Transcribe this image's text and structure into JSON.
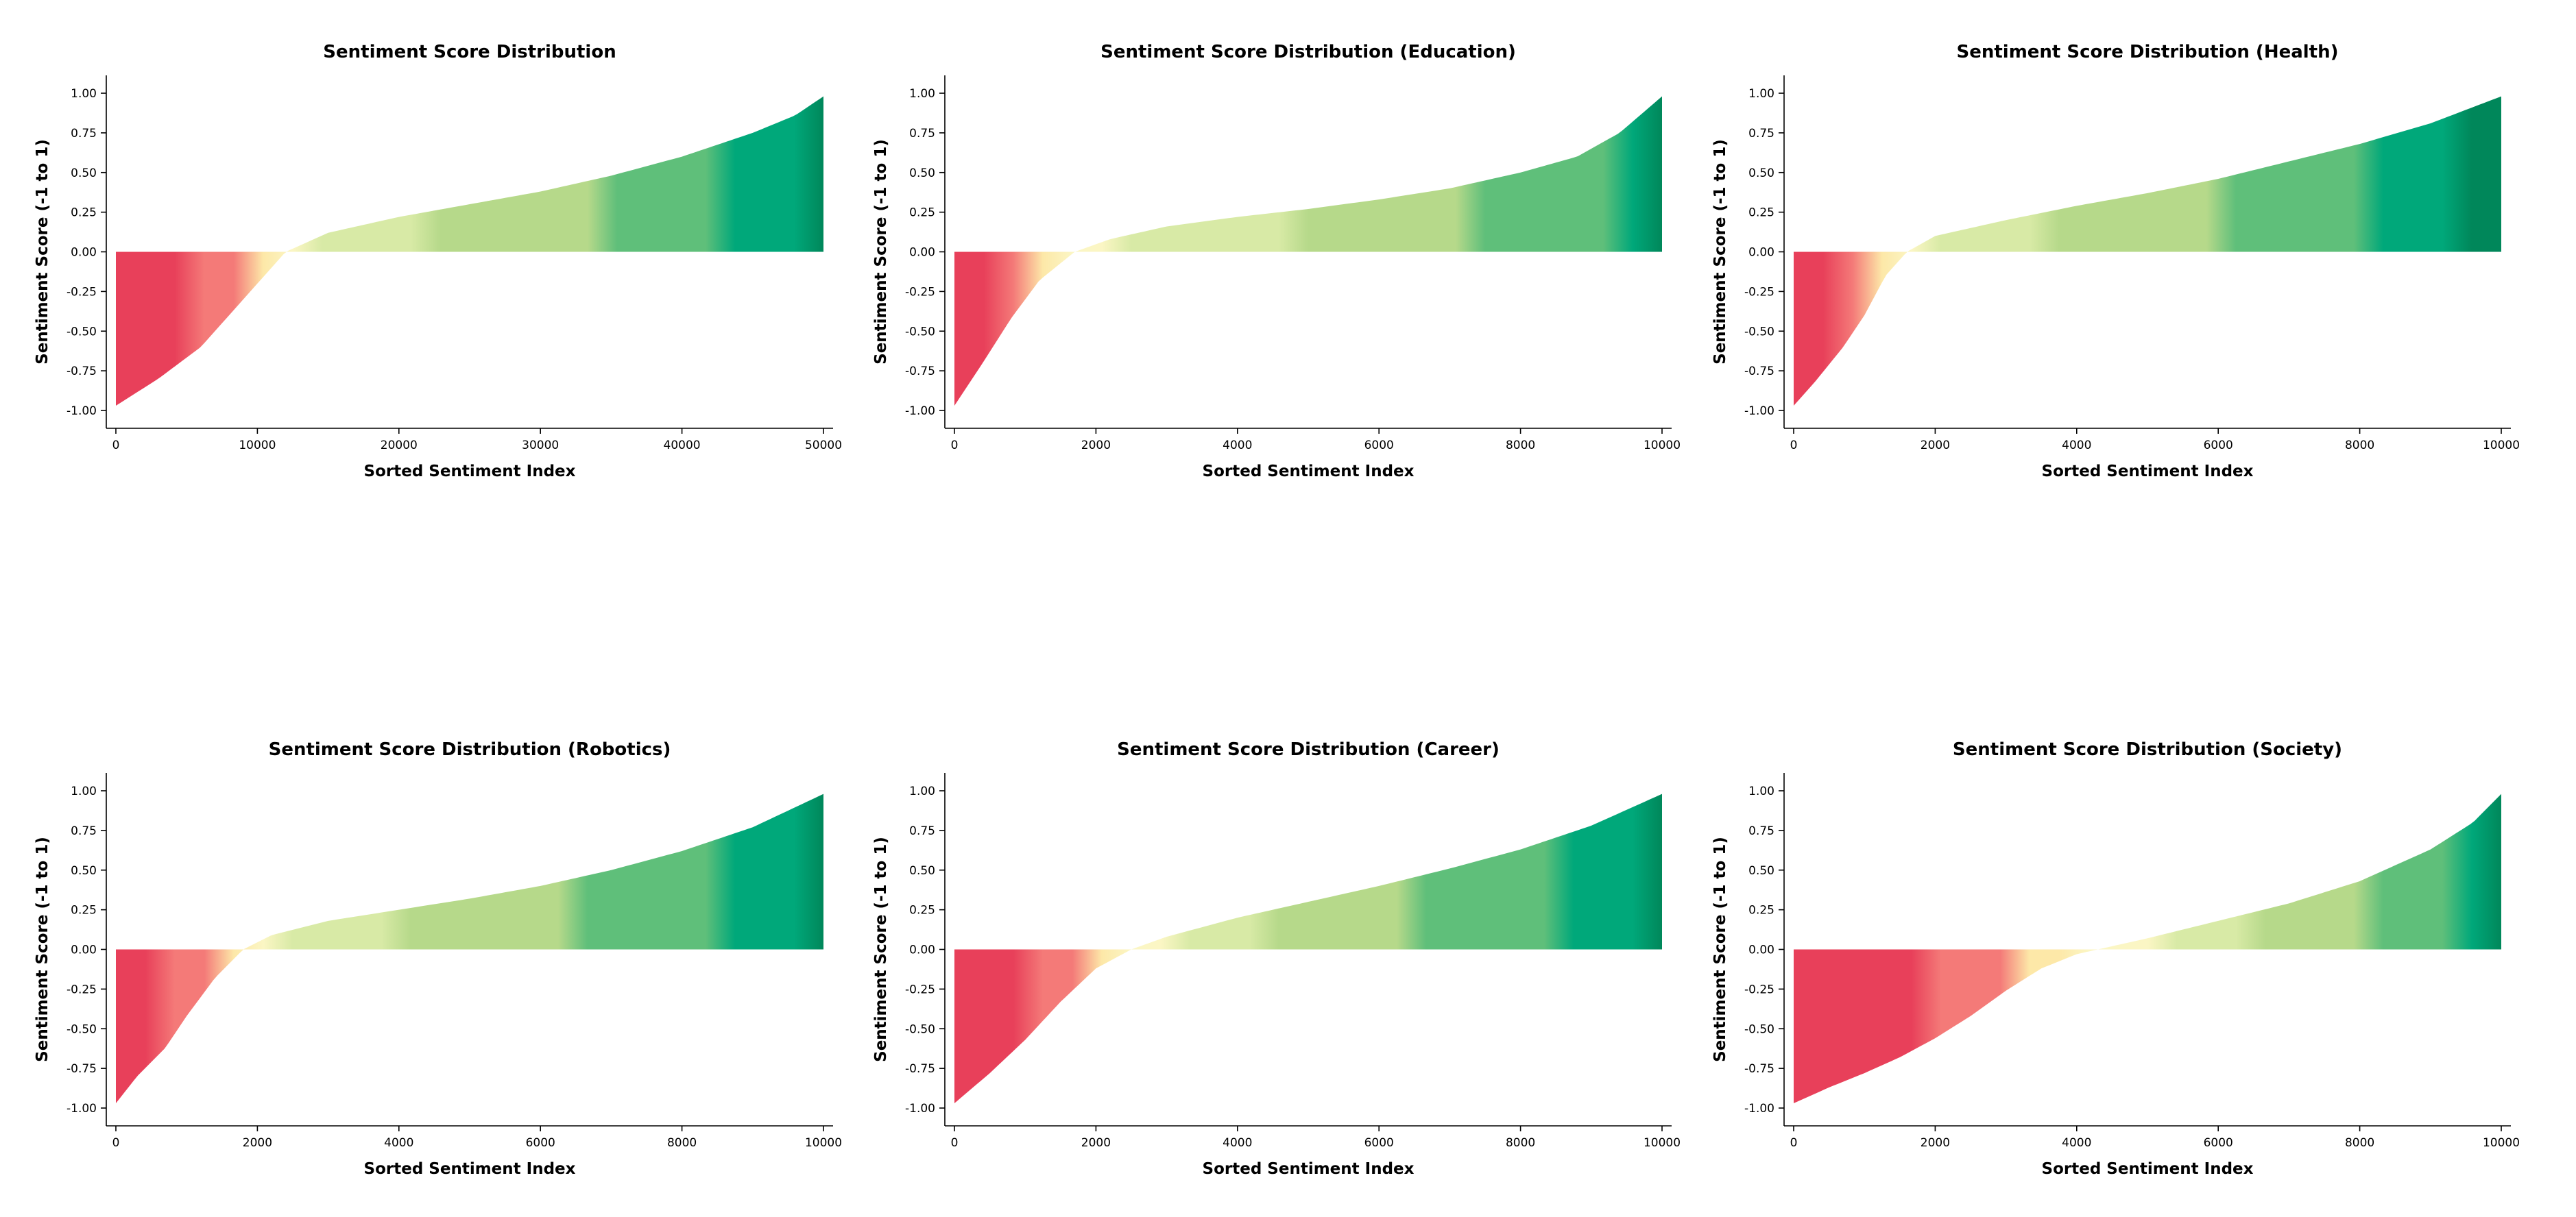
{
  "chart_data": [
    {
      "type": "area",
      "title": "Sentiment Score Distribution",
      "xlabel": "Sorted Sentiment Index",
      "ylabel": "Sentiment Score (-1 to 1)",
      "xlim": [
        0,
        50000
      ],
      "ylim": [
        -1.0,
        1.0
      ],
      "xticks": [
        0,
        10000,
        20000,
        30000,
        40000,
        50000
      ],
      "yticks": [
        "1.00",
        "0.75",
        "0.50",
        "0.25",
        "0.00",
        "-0.25",
        "-0.50",
        "-0.75",
        "-1.00"
      ],
      "grid": false,
      "series": [
        {
          "x": [
            0,
            3000,
            6000,
            9000,
            12000,
            15000,
            20000,
            25000,
            30000,
            35000,
            40000,
            45000,
            48000,
            50000
          ],
          "values": [
            -0.97,
            -0.8,
            -0.6,
            -0.3,
            0.0,
            0.12,
            0.22,
            0.3,
            0.38,
            0.48,
            0.6,
            0.75,
            0.86,
            0.98
          ]
        }
      ]
    },
    {
      "type": "area",
      "title": "Sentiment Score Distribution (Education)",
      "xlabel": "Sorted Sentiment Index",
      "ylabel": "Sentiment Score (-1 to 1)",
      "xlim": [
        0,
        10000
      ],
      "ylim": [
        -1.0,
        1.0
      ],
      "xticks": [
        0,
        2000,
        4000,
        6000,
        8000,
        10000
      ],
      "yticks": [
        "1.00",
        "0.75",
        "0.50",
        "0.25",
        "0.00",
        "-0.25",
        "-0.50",
        "-0.75",
        "-1.00"
      ],
      "grid": false,
      "series": [
        {
          "x": [
            0,
            400,
            800,
            1200,
            1700,
            2200,
            3000,
            4000,
            5000,
            6000,
            7000,
            8000,
            8800,
            9400,
            10000
          ],
          "values": [
            -0.97,
            -0.7,
            -0.42,
            -0.18,
            0.0,
            0.08,
            0.16,
            0.22,
            0.27,
            0.33,
            0.4,
            0.5,
            0.6,
            0.75,
            0.98
          ]
        }
      ]
    },
    {
      "type": "area",
      "title": "Sentiment Score Distribution (Health)",
      "xlabel": "Sorted Sentiment Index",
      "ylabel": "Sentiment Score (-1 to 1)",
      "xlim": [
        0,
        10000
      ],
      "ylim": [
        -1.0,
        1.0
      ],
      "xticks": [
        0,
        2000,
        4000,
        6000,
        8000,
        10000
      ],
      "yticks": [
        "1.00",
        "0.75",
        "0.50",
        "0.25",
        "0.00",
        "-0.25",
        "-0.50",
        "-0.75",
        "-1.00"
      ],
      "grid": false,
      "series": [
        {
          "x": [
            0,
            300,
            700,
            1000,
            1300,
            1600,
            2000,
            3000,
            4000,
            5000,
            6000,
            7000,
            8000,
            9000,
            10000
          ],
          "values": [
            -0.97,
            -0.82,
            -0.6,
            -0.4,
            -0.15,
            0.0,
            0.1,
            0.2,
            0.29,
            0.37,
            0.46,
            0.57,
            0.68,
            0.81,
            0.98
          ]
        }
      ]
    },
    {
      "type": "area",
      "title": "Sentiment Score Distribution (Robotics)",
      "xlabel": "Sorted Sentiment Index",
      "ylabel": "Sentiment Score (-1 to 1)",
      "xlim": [
        0,
        10000
      ],
      "ylim": [
        -1.0,
        1.0
      ],
      "xticks": [
        0,
        2000,
        4000,
        6000,
        8000,
        10000
      ],
      "yticks": [
        "1.00",
        "0.75",
        "0.50",
        "0.25",
        "0.00",
        "-0.25",
        "-0.50",
        "-0.75",
        "-1.00"
      ],
      "grid": false,
      "series": [
        {
          "x": [
            0,
            300,
            700,
            1000,
            1400,
            1800,
            2200,
            3000,
            4000,
            5000,
            6000,
            7000,
            8000,
            9000,
            10000
          ],
          "values": [
            -0.97,
            -0.8,
            -0.62,
            -0.42,
            -0.18,
            0.0,
            0.09,
            0.18,
            0.25,
            0.32,
            0.4,
            0.5,
            0.62,
            0.77,
            0.98
          ]
        }
      ]
    },
    {
      "type": "area",
      "title": "Sentiment Score Distribution (Career)",
      "xlabel": "Sorted Sentiment Index",
      "ylabel": "Sentiment Score (-1 to 1)",
      "xlim": [
        0,
        10000
      ],
      "ylim": [
        -1.0,
        1.0
      ],
      "xticks": [
        0,
        2000,
        4000,
        6000,
        8000,
        10000
      ],
      "yticks": [
        "1.00",
        "0.75",
        "0.50",
        "0.25",
        "0.00",
        "-0.25",
        "-0.50",
        "-0.75",
        "-1.00"
      ],
      "grid": false,
      "series": [
        {
          "x": [
            0,
            500,
            1000,
            1500,
            2000,
            2500,
            3000,
            4000,
            5000,
            6000,
            7000,
            8000,
            9000,
            10000
          ],
          "values": [
            -0.97,
            -0.78,
            -0.57,
            -0.33,
            -0.12,
            0.0,
            0.08,
            0.2,
            0.3,
            0.4,
            0.51,
            0.63,
            0.78,
            0.98
          ]
        }
      ]
    },
    {
      "type": "area",
      "title": "Sentiment Score Distribution (Society)",
      "xlabel": "Sorted Sentiment Index",
      "ylabel": "Sentiment Score (-1 to 1)",
      "xlim": [
        0,
        10000
      ],
      "ylim": [
        -1.0,
        1.0
      ],
      "xticks": [
        0,
        2000,
        4000,
        6000,
        8000,
        10000
      ],
      "yticks": [
        "1.00",
        "0.75",
        "0.50",
        "0.25",
        "0.00",
        "-0.25",
        "-0.50",
        "-0.75",
        "-1.00"
      ],
      "grid": false,
      "series": [
        {
          "x": [
            0,
            500,
            1000,
            1500,
            2000,
            2500,
            3000,
            3500,
            4000,
            4300,
            5000,
            6000,
            7000,
            8000,
            9000,
            9600,
            10000
          ],
          "values": [
            -0.97,
            -0.87,
            -0.78,
            -0.68,
            -0.56,
            -0.42,
            -0.26,
            -0.12,
            -0.03,
            0.0,
            0.07,
            0.18,
            0.29,
            0.43,
            0.63,
            0.8,
            0.98
          ]
        }
      ]
    }
  ],
  "colors": {
    "negative": "#e8405a",
    "neutral_warm": "#fde8a8",
    "neutral": "#fbf6c4",
    "light_green": "#d8eaa6",
    "mid_green": "#b6d98a",
    "green": "#5fbf7a",
    "positive": "#00a87a",
    "positive_dark": "#00875a"
  }
}
